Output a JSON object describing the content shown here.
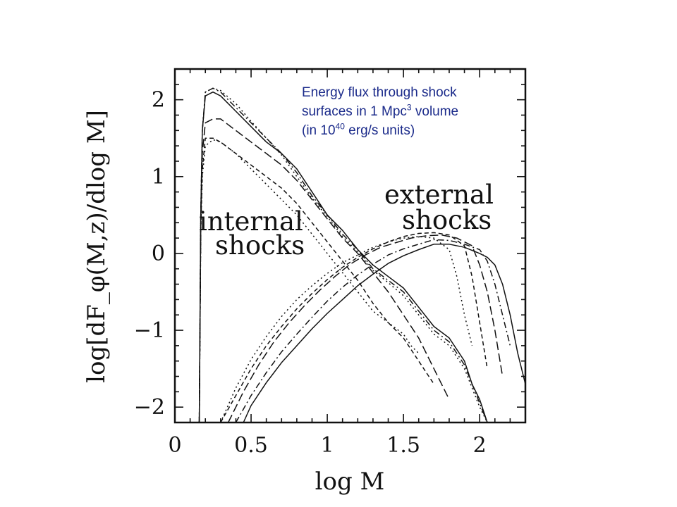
{
  "annotation": {
    "line1": "Energy flux through shock",
    "line2_pre": "surfaces in 1 Mpc",
    "line2_sup": "3",
    "line2_post": " volume",
    "line3_pre": "(in 10",
    "line3_sup": "40",
    "line3_post": " erg/s  units)"
  },
  "chart_data": {
    "type": "line",
    "title": "Energy flux through shock surfaces in 1 Mpc3 volume (in 1040 erg/s units)",
    "xlabel": "log M",
    "ylabel": "log[dF_φ(M,z)/dlog M]",
    "xlim": [
      0,
      2.3
    ],
    "ylim": [
      -2.2,
      2.4
    ],
    "xticks": [
      0,
      0.5,
      1,
      1.5,
      2
    ],
    "xtick_labels": [
      "0",
      "0.5",
      "1",
      "1.5",
      "2"
    ],
    "yticks": [
      -2,
      -1,
      0,
      1,
      2
    ],
    "ytick_labels": [
      "−2",
      "−1",
      "0",
      "1",
      "2"
    ],
    "region_labels": {
      "internal_line1": "internal",
      "internal_line2": "shocks",
      "external_line1": "external",
      "external_line2": "shocks"
    },
    "series": [
      {
        "name": "internal-1",
        "group": "internal",
        "dash": "solid",
        "x": [
          0.16,
          0.17,
          0.18,
          0.2,
          0.25,
          0.3,
          0.4,
          0.5,
          0.6,
          0.7,
          0.8,
          0.9,
          1.0,
          1.1,
          1.2,
          1.3,
          1.4,
          1.5,
          1.6,
          1.7,
          1.8,
          1.9,
          1.95,
          2.0,
          2.05
        ],
        "y": [
          -2.2,
          0.5,
          1.6,
          2.05,
          2.1,
          2.05,
          1.85,
          1.65,
          1.45,
          1.3,
          1.1,
          0.8,
          0.5,
          0.3,
          0.05,
          -0.15,
          -0.3,
          -0.45,
          -0.7,
          -0.95,
          -1.1,
          -1.4,
          -1.7,
          -1.9,
          -2.2
        ]
      },
      {
        "name": "internal-2",
        "group": "internal",
        "dash": "dash-dot",
        "x": [
          0.16,
          0.17,
          0.18,
          0.2,
          0.25,
          0.3,
          0.4,
          0.5,
          0.6,
          0.7,
          0.8,
          0.9,
          1.0,
          1.1,
          1.2,
          1.3,
          1.4,
          1.5,
          1.6,
          1.7,
          1.8,
          1.9,
          1.95,
          2.0,
          2.05
        ],
        "y": [
          -2.2,
          0.5,
          1.6,
          2.1,
          2.15,
          2.1,
          1.9,
          1.7,
          1.5,
          1.3,
          1.05,
          0.75,
          0.5,
          0.25,
          0.05,
          -0.2,
          -0.35,
          -0.5,
          -0.75,
          -1.0,
          -1.15,
          -1.45,
          -1.7,
          -1.95,
          -2.2
        ]
      },
      {
        "name": "internal-3",
        "group": "internal",
        "dash": "dotted",
        "x": [
          0.16,
          0.17,
          0.18,
          0.2,
          0.25,
          0.3,
          0.4,
          0.5,
          0.6,
          0.7,
          0.8,
          0.9,
          1.0,
          1.1,
          1.2,
          1.3,
          1.4,
          1.5,
          1.6,
          1.7,
          1.8,
          1.9,
          1.95,
          2.0,
          2.05
        ],
        "y": [
          -2.2,
          0.5,
          1.6,
          2.1,
          2.15,
          2.12,
          1.95,
          1.72,
          1.5,
          1.28,
          1.0,
          0.72,
          0.48,
          0.22,
          0.02,
          -0.22,
          -0.38,
          -0.55,
          -0.8,
          -1.05,
          -1.2,
          -1.5,
          -1.75,
          -2.0,
          -2.2
        ]
      },
      {
        "name": "internal-4",
        "group": "internal",
        "dash": "long-dash",
        "x": [
          0.16,
          0.17,
          0.18,
          0.2,
          0.25,
          0.3,
          0.4,
          0.5,
          0.6,
          0.7,
          0.8,
          0.9,
          1.0,
          1.1,
          1.2,
          1.3,
          1.4,
          1.5,
          1.6,
          1.7,
          1.8
        ],
        "y": [
          -2.2,
          0.4,
          1.3,
          1.7,
          1.75,
          1.75,
          1.6,
          1.45,
          1.3,
          1.15,
          0.95,
          0.7,
          0.45,
          0.2,
          0.0,
          -0.25,
          -0.5,
          -0.8,
          -1.1,
          -1.5,
          -1.9
        ]
      },
      {
        "name": "internal-5",
        "group": "internal",
        "dash": "short-dash",
        "x": [
          0.16,
          0.17,
          0.18,
          0.2,
          0.25,
          0.3,
          0.4,
          0.5,
          0.6,
          0.7,
          0.8,
          0.9,
          1.0,
          1.1,
          1.2,
          1.3,
          1.4,
          1.5,
          1.6,
          1.7
        ],
        "y": [
          -2.2,
          0.3,
          1.1,
          1.5,
          1.5,
          1.45,
          1.3,
          1.15,
          1.0,
          0.85,
          0.65,
          0.4,
          0.15,
          -0.1,
          -0.35,
          -0.65,
          -0.9,
          -1.1,
          -1.4,
          -1.7
        ]
      },
      {
        "name": "internal-6",
        "group": "internal",
        "dash": "dotted",
        "x": [
          0.16,
          0.17,
          0.18,
          0.2,
          0.25,
          0.3,
          0.4,
          0.5,
          0.6,
          0.7,
          0.8,
          0.9,
          1.0,
          1.1,
          1.2,
          1.3,
          1.4,
          1.5,
          1.55,
          1.6
        ],
        "y": [
          -2.2,
          0.3,
          1.0,
          1.4,
          1.48,
          1.45,
          1.3,
          1.1,
          0.9,
          0.7,
          0.5,
          0.25,
          0.0,
          -0.25,
          -0.5,
          -0.75,
          -0.9,
          -1.05,
          -1.2,
          -1.3
        ]
      },
      {
        "name": "external-1",
        "group": "external",
        "dash": "solid",
        "x": [
          0.45,
          0.5,
          0.6,
          0.7,
          0.8,
          0.9,
          1.0,
          1.1,
          1.2,
          1.3,
          1.4,
          1.5,
          1.6,
          1.7,
          1.8,
          1.9,
          2.0,
          2.05,
          2.1,
          2.15,
          2.2,
          2.25,
          2.3
        ],
        "y": [
          -2.2,
          -1.98,
          -1.68,
          -1.42,
          -1.2,
          -0.98,
          -0.78,
          -0.6,
          -0.42,
          -0.27,
          -0.13,
          -0.03,
          0.05,
          0.12,
          0.12,
          0.08,
          0.0,
          -0.05,
          -0.15,
          -0.4,
          -0.8,
          -1.3,
          -1.7
        ]
      },
      {
        "name": "external-2",
        "group": "external",
        "dash": "dash-dot",
        "x": [
          0.4,
          0.5,
          0.6,
          0.7,
          0.8,
          0.9,
          1.0,
          1.1,
          1.2,
          1.3,
          1.4,
          1.5,
          1.6,
          1.7,
          1.8,
          1.9,
          2.0,
          2.05,
          2.1,
          2.15,
          2.2
        ],
        "y": [
          -2.2,
          -1.85,
          -1.55,
          -1.28,
          -1.05,
          -0.83,
          -0.62,
          -0.44,
          -0.28,
          -0.14,
          -0.02,
          0.06,
          0.12,
          0.18,
          0.17,
          0.12,
          0.05,
          -0.1,
          -0.4,
          -0.8,
          -1.2
        ]
      },
      {
        "name": "external-3",
        "group": "external",
        "dash": "long-dash",
        "x": [
          0.35,
          0.45,
          0.55,
          0.65,
          0.75,
          0.85,
          0.95,
          1.05,
          1.15,
          1.25,
          1.35,
          1.45,
          1.55,
          1.65,
          1.75,
          1.85,
          1.95,
          2.0,
          2.05,
          2.1,
          2.15
        ],
        "y": [
          -2.2,
          -1.8,
          -1.45,
          -1.15,
          -0.9,
          -0.68,
          -0.48,
          -0.3,
          -0.14,
          -0.02,
          0.08,
          0.14,
          0.2,
          0.23,
          0.24,
          0.2,
          0.1,
          -0.15,
          -0.5,
          -1.0,
          -1.6
        ]
      },
      {
        "name": "external-4",
        "group": "external",
        "dash": "short-dash",
        "x": [
          0.3,
          0.4,
          0.5,
          0.6,
          0.7,
          0.8,
          0.9,
          1.0,
          1.1,
          1.2,
          1.3,
          1.4,
          1.5,
          1.6,
          1.7,
          1.8,
          1.9,
          1.95,
          2.0,
          2.05
        ],
        "y": [
          -2.2,
          -1.85,
          -1.5,
          -1.2,
          -0.95,
          -0.72,
          -0.52,
          -0.34,
          -0.18,
          -0.05,
          0.06,
          0.15,
          0.22,
          0.26,
          0.27,
          0.24,
          0.1,
          -0.3,
          -0.9,
          -1.5
        ]
      },
      {
        "name": "external-5",
        "group": "external",
        "dash": "dotted",
        "x": [
          0.3,
          0.4,
          0.5,
          0.6,
          0.7,
          0.8,
          0.9,
          1.0,
          1.1,
          1.2,
          1.3,
          1.4,
          1.5,
          1.6,
          1.7,
          1.8,
          1.85,
          1.9,
          1.95
        ],
        "y": [
          -2.2,
          -1.75,
          -1.38,
          -1.08,
          -0.82,
          -0.6,
          -0.42,
          -0.26,
          -0.12,
          -0.02,
          0.08,
          0.15,
          0.2,
          0.22,
          0.2,
          0.05,
          -0.3,
          -0.8,
          -1.2
        ]
      }
    ]
  }
}
